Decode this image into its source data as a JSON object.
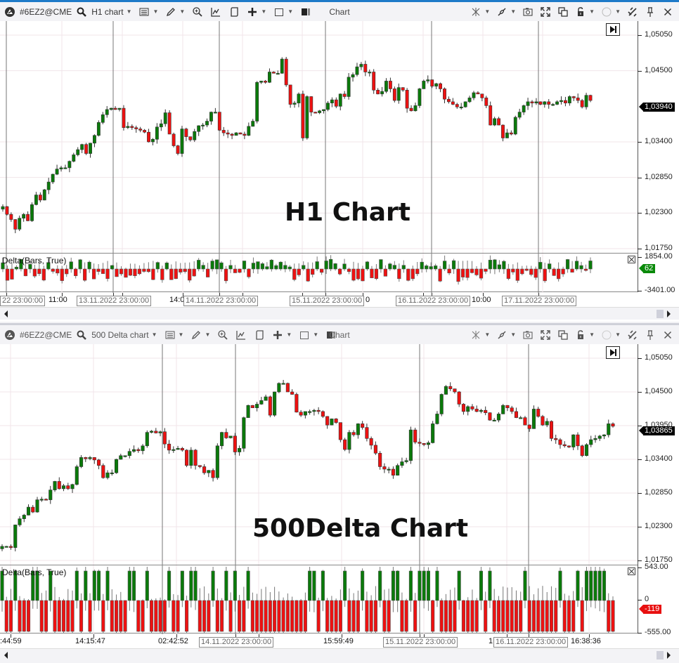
{
  "colors": {
    "accent": "#1e7ac8",
    "up": "#0a7a0a",
    "down": "#ee1111",
    "grid": "#f0e4ea",
    "session_line": "#777777"
  },
  "panels": [
    {
      "id": "h1",
      "toolbar": {
        "logo_icon": "broker-logo-icon",
        "symbol": "#6EZ2@CME",
        "chart_type": "H1 chart",
        "title": "Chart"
      },
      "watermark": "H1 Chart",
      "price_axis": {
        "ticks": [
          "1,05050",
          "1,04500",
          "1,03400",
          "1,02850",
          "1,02300",
          "1,01750"
        ],
        "current_price": "1,03940",
        "min": 1.0175,
        "max": 1.0505
      },
      "indicator": {
        "label": "Delta(Bars, True)",
        "axis_ticks": [
          "1854.00",
          "-3401.00"
        ],
        "current_value": "62",
        "current_value_color": "green"
      },
      "time_axis": [
        {
          "text": "22 23:00:00",
          "boxed": true,
          "x": 0
        },
        {
          "text": "11:00",
          "boxed": false,
          "x": 69
        },
        {
          "text": "13.11.2022 23:00:00",
          "boxed": true,
          "x": 109
        },
        {
          "text": "14:0",
          "boxed": false,
          "x": 241
        },
        {
          "text": "14.11.2022 23:00:00",
          "boxed": true,
          "x": 261
        },
        {
          "text": "15.11.2022 23:00:00",
          "boxed": true,
          "x": 412
        },
        {
          "text": "0",
          "boxed": false,
          "x": 520
        },
        {
          "text": "16.11.2022 23:00:00",
          "boxed": true,
          "x": 563
        },
        {
          "text": "10:00",
          "boxed": false,
          "x": 671
        },
        {
          "text": "17.11.2022 23:00:00",
          "boxed": true,
          "x": 714
        }
      ]
    },
    {
      "id": "delta500",
      "toolbar": {
        "logo_icon": "broker-logo-icon",
        "symbol": "#6EZ2@CME",
        "chart_type": "500 Delta chart",
        "title": "Chart"
      },
      "watermark": "500Delta Chart",
      "price_axis": {
        "ticks": [
          "1,05050",
          "1,04500",
          "1,03950",
          "1,03400",
          "1,02850",
          "1,02300",
          "1,01750"
        ],
        "current_price": "1,03865",
        "min": 1.0175,
        "max": 1.0505
      },
      "indicator": {
        "label": "Delta(Bars, True)",
        "axis_ticks": [
          "543.00",
          "0",
          "-555.00"
        ],
        "current_value": "-119",
        "current_value_color": "red"
      },
      "time_axis": [
        {
          "text": ":44:59",
          "boxed": false,
          "x": 0
        },
        {
          "text": "14:15:47",
          "boxed": false,
          "x": 107
        },
        {
          "text": "02:42:52",
          "boxed": false,
          "x": 225
        },
        {
          "text": "14.11.2022 23:00:00",
          "boxed": true,
          "x": 283
        },
        {
          "text": "15:59:49",
          "boxed": false,
          "x": 460
        },
        {
          "text": "15.11.2022 23:00:00",
          "boxed": true,
          "x": 545
        },
        {
          "text": "1",
          "boxed": false,
          "x": 695
        },
        {
          "text": "16.11.2022 23:00:00",
          "boxed": true,
          "x": 702
        },
        {
          "text": "16:38:36",
          "boxed": false,
          "x": 812
        }
      ]
    }
  ],
  "toolbar_right_icons": [
    "crosshair-icon",
    "link-icon",
    "camera-icon",
    "fullscreen-icon",
    "duplicate-window-icon",
    "lock-icon",
    "circle-color-icon",
    "tools-icon",
    "pin-icon",
    "close-icon"
  ],
  "chart_data": [
    {
      "type": "candlestick",
      "title": "H1 Chart",
      "symbol": "#6EZ2@CME",
      "ylim": [
        1.0175,
        1.0505
      ],
      "y_ticks": [
        1.0505,
        1.045,
        1.034,
        1.0285,
        1.023,
        1.0175
      ],
      "last_price": 1.0394,
      "closes": [
        1.024,
        1.0228,
        1.022,
        1.0205,
        1.0222,
        1.0228,
        1.0218,
        1.0243,
        1.0258,
        1.025,
        1.0266,
        1.0278,
        1.029,
        1.0298,
        1.03,
        1.03,
        1.031,
        1.032,
        1.0328,
        1.0336,
        1.0322,
        1.0338,
        1.035,
        1.037,
        1.0382,
        1.039,
        1.0392,
        1.039,
        1.0392,
        1.0362,
        1.0364,
        1.0362,
        1.036,
        1.0358,
        1.0355,
        1.034,
        1.0344,
        1.0363,
        1.0368,
        1.0385,
        1.0352,
        1.0334,
        1.0322,
        1.036,
        1.0348,
        1.0343,
        1.0356,
        1.0365,
        1.0366,
        1.0372,
        1.0386,
        1.0386,
        1.0358,
        1.0354,
        1.0352,
        1.035,
        1.0354,
        1.0352,
        1.035,
        1.0364,
        1.0372,
        1.0432,
        1.0434,
        1.0432,
        1.0448,
        1.0446,
        1.0446,
        1.0468,
        1.0428,
        1.0398,
        1.04,
        1.0414,
        1.0346,
        1.041,
        1.0386,
        1.0385,
        1.0388,
        1.039,
        1.04,
        1.0405,
        1.0395,
        1.0414,
        1.041,
        1.044,
        1.0444,
        1.0456,
        1.046,
        1.0448,
        1.0448,
        1.042,
        1.0414,
        1.0418,
        1.0434,
        1.0422,
        1.0404,
        1.0424,
        1.042,
        1.0392,
        1.0388,
        1.0396,
        1.0422,
        1.0434,
        1.0436,
        1.0426,
        1.043,
        1.0422,
        1.0406,
        1.0402,
        1.0398,
        1.0394,
        1.0394,
        1.0402,
        1.0408,
        1.0416,
        1.0414,
        1.0408,
        1.0396,
        1.0366,
        1.0376,
        1.0366,
        1.0346,
        1.0354,
        1.0352,
        1.0378,
        1.0386,
        1.0396,
        1.0402,
        1.04,
        1.0402,
        1.0398,
        1.0402,
        1.0398,
        1.0398,
        1.0402,
        1.0404,
        1.04,
        1.041,
        1.0408,
        1.0404,
        1.0394,
        1.0412,
        1.0404
      ]
    },
    {
      "type": "bar",
      "title": "Delta(Bars, True) — H1",
      "ylim": [
        -3401,
        1854
      ],
      "last_value": 62
    },
    {
      "type": "candlestick",
      "title": "500Delta Chart",
      "symbol": "#6EZ2@CME",
      "ylim": [
        1.0175,
        1.0505
      ],
      "y_ticks": [
        1.0505,
        1.045,
        1.0395,
        1.034,
        1.0285,
        1.023,
        1.0175
      ],
      "last_price": 1.03865,
      "closes": [
        1.0198,
        1.0198,
        1.0196,
        1.0233,
        1.0243,
        1.0249,
        1.0262,
        1.0254,
        1.0274,
        1.0275,
        1.0274,
        1.029,
        1.0304,
        1.0292,
        1.0297,
        1.0292,
        1.0299,
        1.0328,
        1.0343,
        1.0341,
        1.0343,
        1.0339,
        1.033,
        1.031,
        1.0318,
        1.0318,
        1.034,
        1.0346,
        1.0346,
        1.0353,
        1.0356,
        1.0354,
        1.0362,
        1.0384,
        1.0386,
        1.0383,
        1.0385,
        1.0365,
        1.0355,
        1.0356,
        1.0358,
        1.0355,
        1.033,
        1.0355,
        1.033,
        1.0328,
        1.0318,
        1.0322,
        1.031,
        1.0362,
        1.0384,
        1.0375,
        1.0378,
        1.0352,
        1.0358,
        1.0408,
        1.0428,
        1.0424,
        1.043,
        1.0436,
        1.0442,
        1.0412,
        1.045,
        1.0464,
        1.0464,
        1.045,
        1.0446,
        1.0417,
        1.0412,
        1.0418,
        1.0418,
        1.042,
        1.0418,
        1.041,
        1.0396,
        1.0406,
        1.04,
        1.0372,
        1.0356,
        1.0384,
        1.038,
        1.0398,
        1.0392,
        1.0374,
        1.0363,
        1.035,
        1.0328,
        1.0324,
        1.0324,
        1.0314,
        1.033,
        1.0336,
        1.0338,
        1.0388,
        1.0368,
        1.0366,
        1.0364,
        1.0367,
        1.0398,
        1.0414,
        1.0446,
        1.0459,
        1.0455,
        1.045,
        1.043,
        1.0418,
        1.0426,
        1.0422,
        1.0418,
        1.042,
        1.0416,
        1.0404,
        1.0404,
        1.0414,
        1.0428,
        1.0424,
        1.0418,
        1.0408,
        1.0408,
        1.0396,
        1.039,
        1.0422,
        1.041,
        1.0396,
        1.0402,
        1.0374,
        1.0372,
        1.0364,
        1.0362,
        1.036,
        1.038,
        1.0362,
        1.0346,
        1.0364,
        1.0372,
        1.0374,
        1.0378,
        1.038,
        1.0398,
        1.0394
      ]
    },
    {
      "type": "bar",
      "title": "Delta(Bars, True) — 500 Delta",
      "ylim": [
        -555,
        543
      ],
      "last_value": -119
    }
  ]
}
